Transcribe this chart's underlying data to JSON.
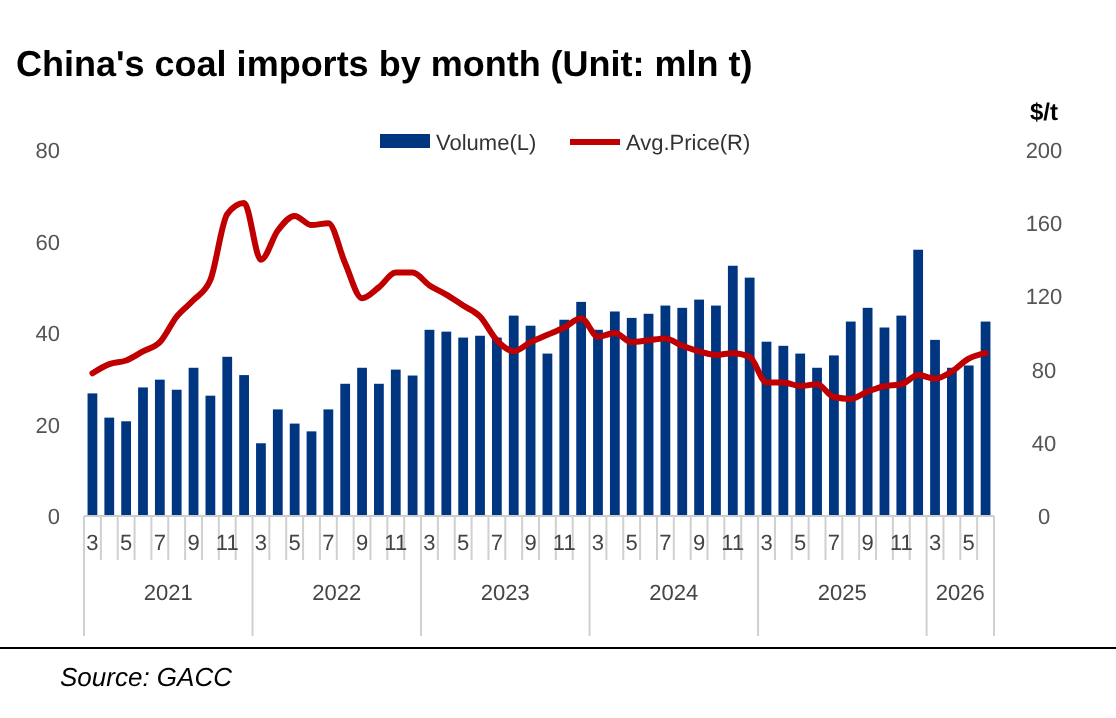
{
  "chart_data": {
    "type": "bar",
    "title": "China's coal imports by month (Unit: mln t)",
    "y2label": "$/t",
    "categories": [
      "3",
      null,
      "5",
      null,
      "7",
      null,
      "9",
      null,
      "11",
      null,
      "3",
      null,
      "5",
      null,
      "7",
      null,
      "9",
      null,
      "11",
      null,
      "3",
      null,
      "5",
      null,
      "7",
      null,
      "9",
      null,
      "11",
      null,
      "3",
      null,
      "5",
      null,
      "7",
      null,
      "9",
      null,
      "11",
      null,
      "3",
      null,
      "5",
      null,
      "7",
      null,
      "9",
      null,
      "11",
      null,
      "3",
      null,
      "5",
      null
    ],
    "series": [
      {
        "name": "Volume(L)",
        "color": "#003580",
        "values": [
          26.8,
          21.5,
          20.7,
          28.1,
          29.8,
          27.6,
          32.4,
          26.3,
          34.8,
          30.8,
          15.9,
          23.3,
          20.2,
          18.5,
          23.3,
          28.9,
          32.4,
          28.9,
          32.0,
          30.7,
          40.7,
          40.3,
          39.0,
          39.4,
          39.0,
          43.8,
          41.6,
          35.5,
          42.9,
          46.8,
          40.7,
          44.7,
          43.3,
          44.2,
          46.0,
          45.5,
          47.3,
          46.0,
          54.7,
          52.1,
          38.1,
          37.2,
          35.5,
          32.4,
          35.1,
          42.5,
          45.5,
          41.2,
          43.8,
          58.2,
          38.5,
          32.4,
          32.9,
          42.5
        ]
      },
      {
        "name": "Avg.Price(R)",
        "type": "line",
        "axis": "y2",
        "color": "#c00000",
        "values": [
          78,
          83,
          85,
          90,
          95,
          109,
          118,
          129,
          165,
          171,
          140,
          156,
          164,
          159,
          160,
          138,
          119,
          125,
          133,
          133,
          126,
          121,
          115,
          109,
          96,
          90,
          95,
          99,
          103,
          108,
          98,
          100,
          95,
          96,
          97,
          93,
          90,
          88,
          89,
          87,
          73,
          73,
          71,
          72,
          65,
          64,
          68,
          71,
          72,
          77,
          75,
          79,
          86,
          89
        ]
      }
    ],
    "ylim": [
      0,
      80
    ],
    "yticks": [
      0,
      20,
      40,
      60,
      80
    ],
    "y2lim": [
      0,
      200
    ],
    "y2ticks": [
      0,
      40,
      80,
      120,
      160,
      200
    ],
    "legend": "top",
    "marker": "none",
    "line_style": "solid",
    "grid": false,
    "annotations": [
      "2021",
      "2022",
      "2023",
      "2024",
      "2025",
      "2026",
      "Source: GACC"
    ]
  }
}
